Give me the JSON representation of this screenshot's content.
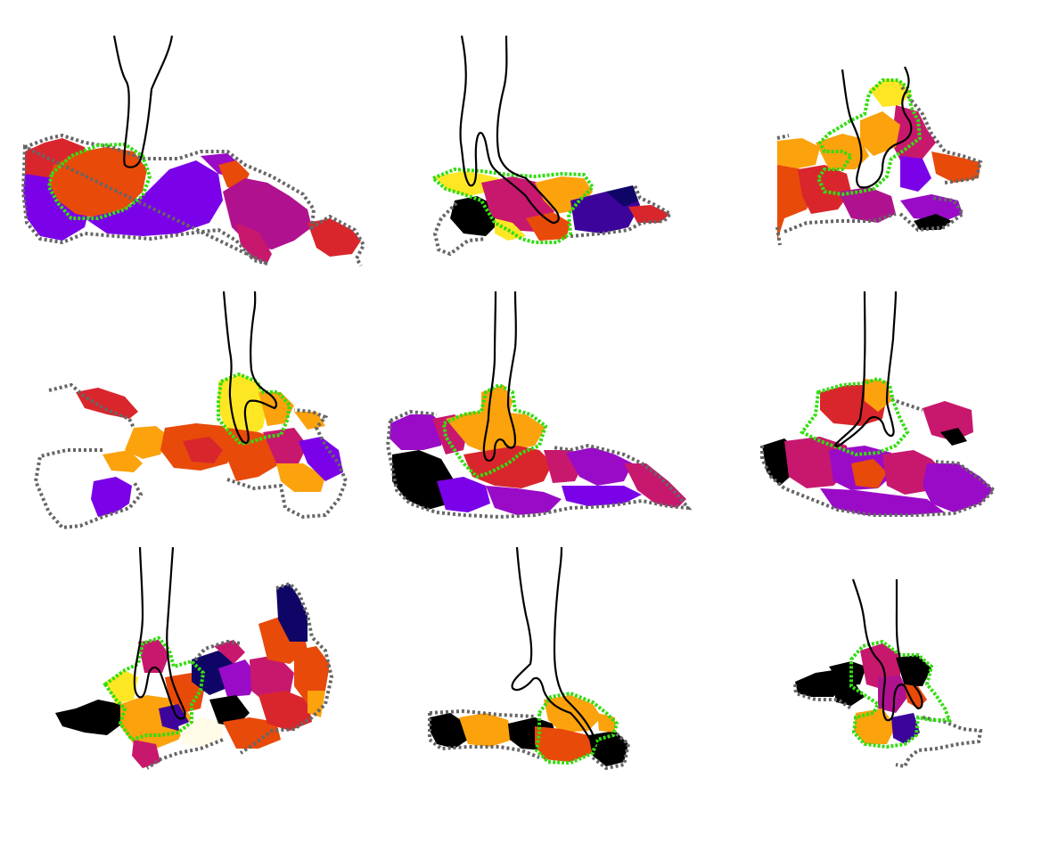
{
  "figure": {
    "rows": 3,
    "cols": 3,
    "panel_count": 9
  },
  "colors": {
    "background": "#ffffff",
    "outer_boundary": "#666666",
    "highlight_boundary": "#33dd11",
    "foot_outline": "#000000",
    "palette": [
      "#000000",
      "#0f0566",
      "#3d049b",
      "#7b02e8",
      "#9a0bc8",
      "#b0128f",
      "#c7186e",
      "#d9262c",
      "#e84a0a",
      "#f07800",
      "#fba20d",
      "#fde724",
      "#fffbe6"
    ]
  },
  "panels": [
    {
      "name": "panel-1",
      "row": 1,
      "col": 1
    },
    {
      "name": "panel-2",
      "row": 1,
      "col": 2
    },
    {
      "name": "panel-3",
      "row": 1,
      "col": 3
    },
    {
      "name": "panel-4",
      "row": 2,
      "col": 1
    },
    {
      "name": "panel-5",
      "row": 2,
      "col": 2
    },
    {
      "name": "panel-6",
      "row": 2,
      "col": 3
    },
    {
      "name": "panel-7",
      "row": 3,
      "col": 1
    },
    {
      "name": "panel-8",
      "row": 3,
      "col": 2
    },
    {
      "name": "panel-9",
      "row": 3,
      "col": 3
    }
  ]
}
